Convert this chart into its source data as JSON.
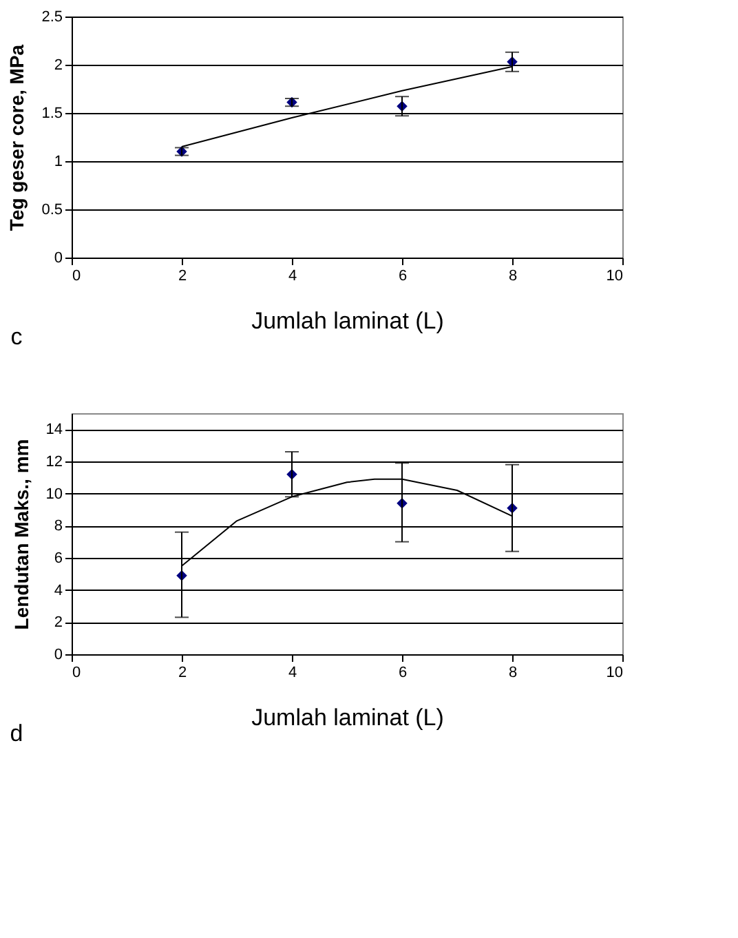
{
  "chart_data": [
    {
      "type": "scatter",
      "xlabel": "Jumlah laminat (L)",
      "ylabel": "Teg geser core, MPa",
      "annotations": [
        "c"
      ],
      "xlim": [
        0,
        10
      ],
      "xticks": [
        0,
        2,
        4,
        6,
        8,
        10
      ],
      "ylim": [
        0,
        2.5
      ],
      "yticks": [
        0,
        0.5,
        1,
        1.5,
        2,
        2.5
      ],
      "grid": "y",
      "marker": "diamond",
      "series": [
        {
          "color": "#000080",
          "x": [
            2,
            4,
            6,
            8
          ],
          "values": [
            1.1,
            1.61,
            1.57,
            2.03
          ],
          "errors": [
            0.04,
            0.04,
            0.1,
            0.1
          ]
        },
        {
          "type": "line",
          "marker": "none",
          "color": "#000000",
          "x": [
            2,
            4,
            6,
            8
          ],
          "values": [
            1.15,
            1.45,
            1.73,
            1.98
          ]
        }
      ]
    },
    {
      "type": "scatter",
      "xlabel": "Jumlah laminat (L)",
      "ylabel": "Lendutan Maks., mm",
      "annotations": [
        "d"
      ],
      "xlim": [
        0,
        10
      ],
      "xticks": [
        0,
        2,
        4,
        6,
        8,
        10
      ],
      "ylim": [
        0,
        15
      ],
      "yticks": [
        0,
        2,
        4,
        6,
        8,
        10,
        12,
        14
      ],
      "grid": "y",
      "marker": "diamond",
      "series": [
        {
          "color": "#000080",
          "x": [
            2,
            4,
            6,
            8
          ],
          "values": [
            4.9,
            11.2,
            9.4,
            9.1
          ],
          "errors": [
            [
              2.3,
              7.6
            ],
            [
              9.8,
              12.6
            ],
            [
              7.0,
              11.9
            ],
            [
              6.4,
              11.8
            ]
          ]
        },
        {
          "type": "line",
          "marker": "none",
          "color": "#000000",
          "x": [
            2,
            3,
            4,
            5,
            5.5,
            6,
            7,
            8
          ],
          "values": [
            5.5,
            8.3,
            9.8,
            10.7,
            10.9,
            10.9,
            10.2,
            8.6
          ]
        }
      ]
    }
  ]
}
